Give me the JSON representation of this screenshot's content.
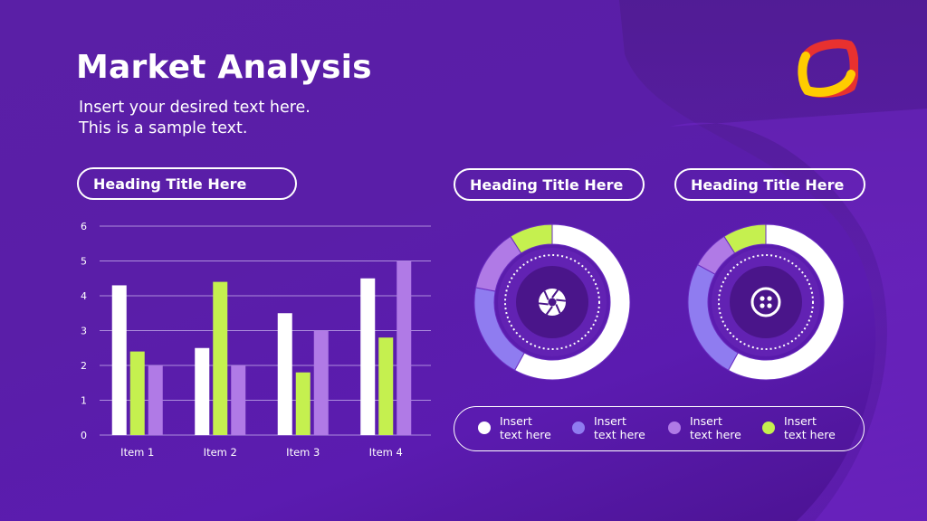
{
  "slide": {
    "title": "Market Analysis",
    "subtitle_lines": [
      "Insert your desired text here.",
      "This is a sample text."
    ]
  },
  "headings": [
    "Heading Title Here",
    "Heading Title Here",
    "Heading Title Here"
  ],
  "colors": {
    "white": "#ffffff",
    "green": "#c5f04f",
    "lavender": "#b07ae6",
    "periwinkle": "#8f7cf0",
    "background": "#5a1ea8",
    "logo_red": "#e8312f",
    "logo_yellow": "#ffcc00"
  },
  "icons": [
    "camera-aperture-icon",
    "button-icon",
    "logo-icon"
  ],
  "legend": [
    {
      "line1": "Insert",
      "line2": "text here",
      "color": "#ffffff"
    },
    {
      "line1": "Insert",
      "line2": "text here",
      "color": "#8f7cf0"
    },
    {
      "line1": "Insert",
      "line2": "text here",
      "color": "#b07ae6"
    },
    {
      "line1": "Insert",
      "line2": "text here",
      "color": "#c5f04f"
    }
  ],
  "chart_data": [
    {
      "type": "bar",
      "categories": [
        "Item  1",
        "Item 2",
        "Item 3",
        "Item 4"
      ],
      "series": [
        {
          "values": [
            4.3,
            2.5,
            3.5,
            4.5
          ],
          "color": "#ffffff"
        },
        {
          "values": [
            2.4,
            4.4,
            1.8,
            2.8
          ],
          "color": "#c5f04f"
        },
        {
          "values": [
            2.0,
            2.0,
            3.0,
            5.0
          ],
          "color": "#b07ae6"
        }
      ],
      "ylim": [
        0,
        6
      ],
      "yticks": [
        0,
        1,
        2,
        3,
        4,
        5,
        6
      ],
      "grid": true,
      "legend": "none"
    },
    {
      "type": "pie",
      "style": "donut",
      "slices": [
        {
          "value": 58,
          "color": "#ffffff"
        },
        {
          "value": 20,
          "color": "#8f7cf0"
        },
        {
          "value": 13,
          "color": "#b07ae6"
        },
        {
          "value": 9,
          "color": "#c5f04f"
        }
      ]
    },
    {
      "type": "pie",
      "style": "donut",
      "slices": [
        {
          "value": 58,
          "color": "#ffffff"
        },
        {
          "value": 25,
          "color": "#8f7cf0"
        },
        {
          "value": 8,
          "color": "#b07ae6"
        },
        {
          "value": 9,
          "color": "#c5f04f"
        }
      ]
    }
  ]
}
